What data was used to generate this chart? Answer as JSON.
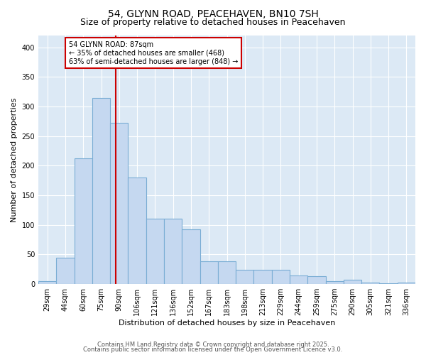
{
  "title1": "54, GLYNN ROAD, PEACEHAVEN, BN10 7SH",
  "title2": "Size of property relative to detached houses in Peacehaven",
  "xlabel": "Distribution of detached houses by size in Peacehaven",
  "ylabel": "Number of detached properties",
  "bar_labels": [
    "29sqm",
    "44sqm",
    "60sqm",
    "75sqm",
    "90sqm",
    "106sqm",
    "121sqm",
    "136sqm",
    "152sqm",
    "167sqm",
    "183sqm",
    "198sqm",
    "213sqm",
    "229sqm",
    "244sqm",
    "259sqm",
    "275sqm",
    "290sqm",
    "305sqm",
    "321sqm",
    "336sqm"
  ],
  "bar_values": [
    5,
    44,
    212,
    315,
    273,
    180,
    110,
    110,
    92,
    38,
    38,
    24,
    24,
    24,
    15,
    13,
    5,
    7,
    3,
    1,
    3
  ],
  "bar_color": "#c5d8f0",
  "bar_edgecolor": "#7aadd4",
  "vline_color": "#cc0000",
  "annotation_text": "54 GLYNN ROAD: 87sqm\n← 35% of detached houses are smaller (468)\n63% of semi-detached houses are larger (848) →",
  "annotation_box_facecolor": "#ffffff",
  "annotation_box_edgecolor": "#cc0000",
  "ylim": [
    0,
    420
  ],
  "yticks": [
    0,
    50,
    100,
    150,
    200,
    250,
    300,
    350,
    400
  ],
  "fig_facecolor": "#ffffff",
  "plot_facecolor": "#dce9f5",
  "grid_color": "#ffffff",
  "title1_fontsize": 10,
  "title2_fontsize": 9,
  "tick_fontsize": 7,
  "ylabel_fontsize": 8,
  "xlabel_fontsize": 8,
  "annotation_fontsize": 7,
  "footer_fontsize": 6,
  "footer_line1": "Contains HM Land Registry data © Crown copyright and database right 2025.",
  "footer_line2": "Contains public sector information licensed under the Open Government Licence v3.0."
}
